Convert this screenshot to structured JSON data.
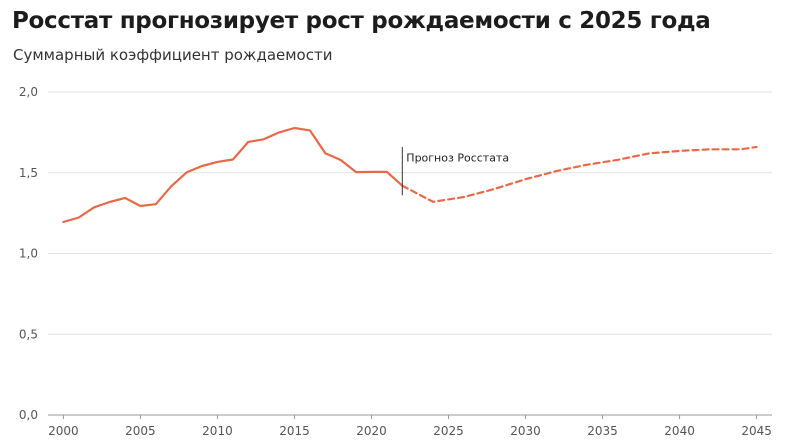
{
  "chart_data": {
    "type": "line",
    "title": "Росстат прогнозирует рост рождаемости с 2025 года",
    "subtitle": "Суммарный коэффициент рождаемости",
    "xlabel": "",
    "ylabel": "",
    "xlim": [
      1999,
      2046
    ],
    "ylim": [
      0,
      2
    ],
    "x_ticks": [
      2000,
      2005,
      2010,
      2015,
      2020,
      2025,
      2030,
      2035,
      2040,
      2045
    ],
    "x_tick_labels": [
      "2000",
      "2005",
      "2010",
      "2015",
      "2020",
      "2025",
      "2030",
      "2035",
      "2040",
      "2045"
    ],
    "y_ticks": [
      0,
      0.5,
      1,
      1.5,
      2
    ],
    "y_tick_labels": [
      "0,0",
      "0,5",
      "1,0",
      "1,5",
      "2,0"
    ],
    "grid": true,
    "colors": {
      "line": "#e8694a"
    },
    "series": [
      {
        "style": "solid",
        "x": [
          2000,
          2001,
          2002,
          2003,
          2004,
          2005,
          2006,
          2007,
          2008,
          2009,
          2010,
          2011,
          2012,
          2013,
          2014,
          2015,
          2016,
          2017,
          2018,
          2019,
          2020,
          2021,
          2022
        ],
        "y": [
          1.195,
          1.223,
          1.286,
          1.319,
          1.344,
          1.294,
          1.305,
          1.416,
          1.502,
          1.542,
          1.567,
          1.582,
          1.691,
          1.707,
          1.75,
          1.777,
          1.762,
          1.621,
          1.579,
          1.504,
          1.505,
          1.505,
          1.42
        ]
      },
      {
        "style": "dashed",
        "x": [
          2022,
          2024,
          2026,
          2028,
          2030,
          2032,
          2034,
          2036,
          2038,
          2040,
          2042,
          2044,
          2045
        ],
        "y": [
          1.42,
          1.32,
          1.35,
          1.4,
          1.46,
          1.51,
          1.55,
          1.58,
          1.62,
          1.635,
          1.645,
          1.645,
          1.66
        ]
      }
    ],
    "annotations": [
      {
        "x": 2022,
        "text": "Прогноз Росстата"
      }
    ]
  }
}
